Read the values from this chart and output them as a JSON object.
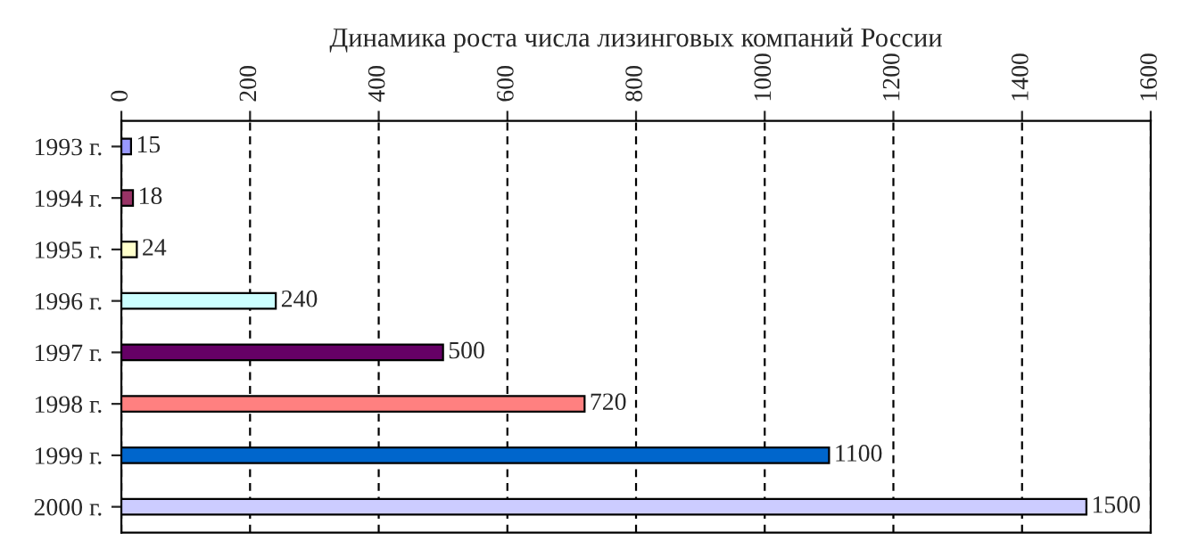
{
  "chart_data": {
    "type": "bar",
    "orientation": "horizontal",
    "title": "Динамика роста числа лизинговых компаний России",
    "categories": [
      "1993 г.",
      "1994 г.",
      "1995 г.",
      "1996 г.",
      "1997 г.",
      "1998 г.",
      "1999 г.",
      "2000 г."
    ],
    "values": [
      15,
      18,
      24,
      240,
      500,
      720,
      1100,
      1500
    ],
    "colors": [
      "#9999ff",
      "#993366",
      "#ffffcc",
      "#ccffff",
      "#660066",
      "#ff8080",
      "#0066cc",
      "#ccccff"
    ],
    "xlim": [
      0,
      1600
    ],
    "xticks": [
      0,
      200,
      400,
      600,
      800,
      1000,
      1200,
      1400,
      1600
    ],
    "grid": "x",
    "data_labels": true,
    "legend": false
  }
}
